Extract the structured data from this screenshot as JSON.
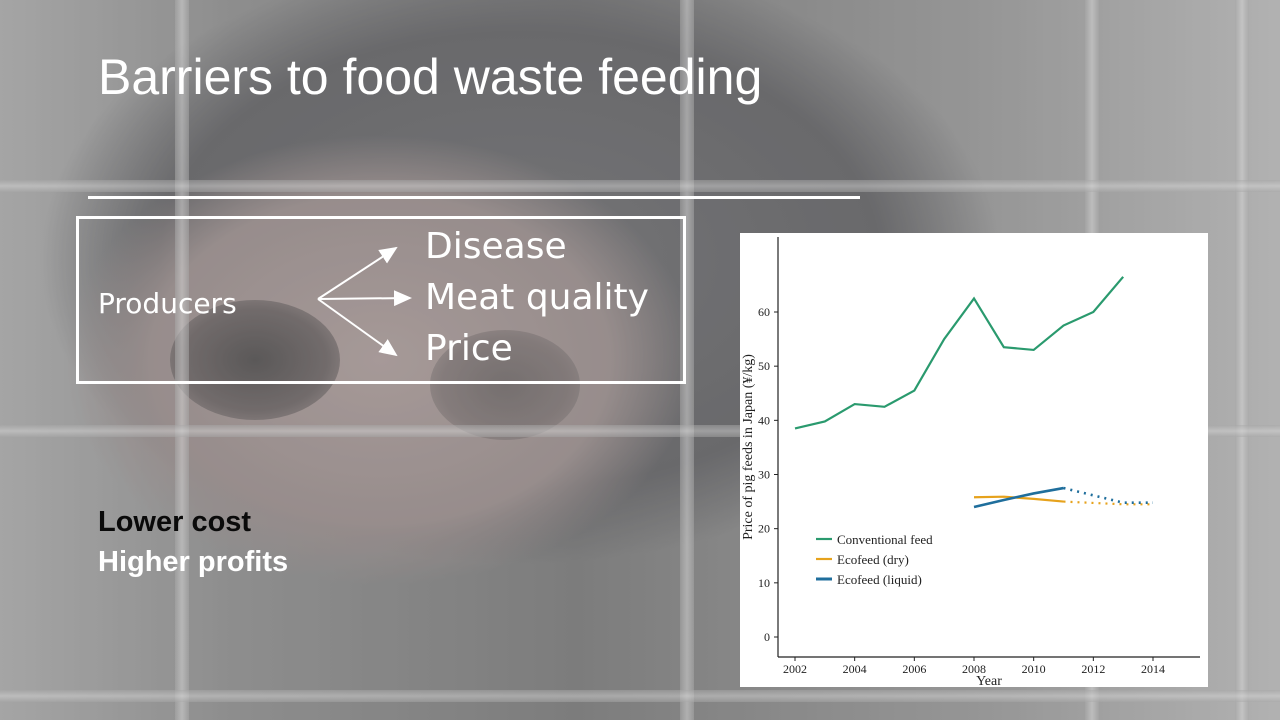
{
  "slide": {
    "title": "Barriers to food waste feeding",
    "flow": {
      "source": "Producers",
      "outcomes": [
        "Disease",
        "Meat quality",
        "Price"
      ]
    },
    "benefits": [
      "Lower cost",
      "Higher profits"
    ],
    "colors": {
      "text": "#ffffff",
      "benefit_dark": "#0a0a0a"
    }
  },
  "chart_data": {
    "type": "line",
    "xlabel": "Year",
    "ylabel": "Price of pig feeds in Japan (¥/kg)",
    "xlim": [
      2002,
      2014
    ],
    "ylim": [
      0,
      70
    ],
    "xticks": [
      2002,
      2004,
      2006,
      2008,
      2010,
      2012,
      2014
    ],
    "yticks": [
      0,
      10,
      20,
      30,
      40,
      50,
      60
    ],
    "legend_position": "bottom-left",
    "grid": false,
    "series": [
      {
        "name": "Conventional feed",
        "color": "#2a9a6e",
        "x": [
          2002,
          2003,
          2004,
          2005,
          2006,
          2007,
          2008,
          2009,
          2010,
          2011,
          2012,
          2013
        ],
        "y": [
          38.5,
          39.8,
          43.0,
          42.5,
          45.5,
          55.0,
          62.5,
          53.5,
          53.0,
          57.5,
          60.0,
          66.5
        ]
      },
      {
        "name": "Ecofeed (dry)",
        "color": "#e6a21c",
        "x": [
          2008,
          2009,
          2010,
          2011
        ],
        "y": [
          25.8,
          25.9,
          25.5,
          25.0
        ],
        "dotted_x": [
          2011,
          2013,
          2014
        ],
        "dotted_y": [
          25.0,
          24.5,
          24.5
        ]
      },
      {
        "name": "Ecofeed (liquid)",
        "color": "#1f6e9c",
        "x": [
          2008,
          2009,
          2010,
          2011
        ],
        "y": [
          24.0,
          25.3,
          26.5,
          27.5
        ],
        "dotted_x": [
          2011,
          2013,
          2014
        ],
        "dotted_y": [
          27.5,
          24.8,
          24.8
        ]
      }
    ]
  }
}
